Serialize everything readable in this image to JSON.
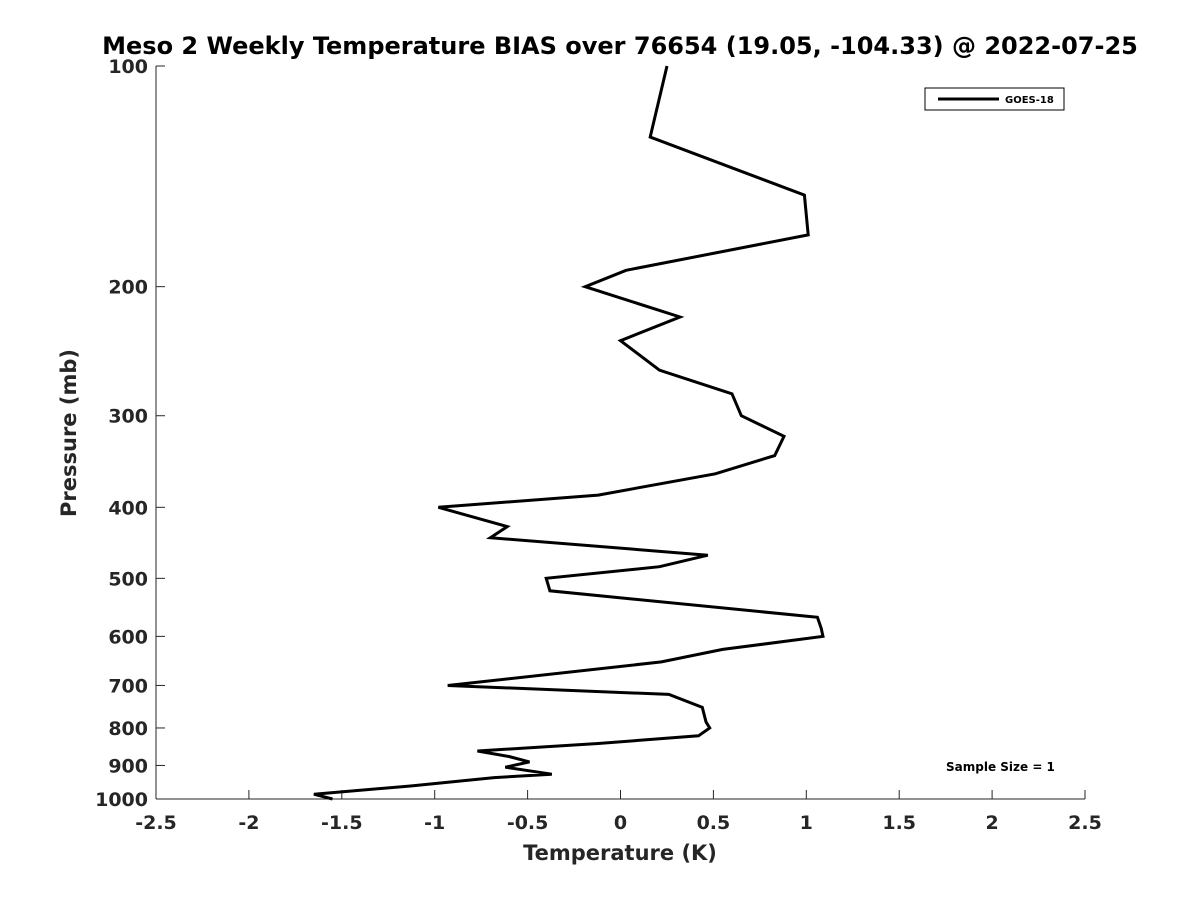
{
  "chart_data": {
    "type": "line",
    "title": "Meso 2 Weekly Temperature BIAS over 76654 (19.05, -104.33) @ 2022-07-25",
    "xlabel": "Temperature (K)",
    "ylabel": "Pressure (mb)",
    "xlim": [
      -2.5,
      2.5
    ],
    "ylim": [
      100,
      1000
    ],
    "y_scale": "log",
    "y_reversed": true,
    "x_ticks": [
      -2.5,
      -2,
      -1.5,
      -1,
      -0.5,
      0,
      0.5,
      1,
      1.5,
      2,
      2.5
    ],
    "x_tick_labels": [
      "-2.5",
      "-2",
      "-1.5",
      "-1",
      "-0.5",
      "0",
      "0.5",
      "1",
      "1.5",
      "2",
      "2.5"
    ],
    "y_ticks": [
      100,
      200,
      300,
      400,
      500,
      600,
      700,
      800,
      900,
      1000
    ],
    "y_tick_labels": [
      "100",
      "200",
      "300",
      "400",
      "500",
      "600",
      "700",
      "800",
      "900",
      "1000"
    ],
    "grid": false,
    "legend_position": "top-right",
    "series": [
      {
        "name": "GOES-18",
        "color": "#000000",
        "points": [
          {
            "x": 0.25,
            "y": 100
          },
          {
            "x": 0.16,
            "y": 125
          },
          {
            "x": 0.99,
            "y": 150
          },
          {
            "x": 1.01,
            "y": 170
          },
          {
            "x": 0.03,
            "y": 190
          },
          {
            "x": -0.19,
            "y": 200
          },
          {
            "x": 0.32,
            "y": 220
          },
          {
            "x": 0.0,
            "y": 237
          },
          {
            "x": 0.21,
            "y": 260
          },
          {
            "x": 0.6,
            "y": 280
          },
          {
            "x": 0.65,
            "y": 300
          },
          {
            "x": 0.88,
            "y": 320
          },
          {
            "x": 0.83,
            "y": 340
          },
          {
            "x": 0.51,
            "y": 360
          },
          {
            "x": -0.12,
            "y": 385
          },
          {
            "x": -0.98,
            "y": 400
          },
          {
            "x": -0.61,
            "y": 425
          },
          {
            "x": -0.7,
            "y": 440
          },
          {
            "x": 0.47,
            "y": 465
          },
          {
            "x": 0.21,
            "y": 482
          },
          {
            "x": -0.4,
            "y": 500
          },
          {
            "x": -0.38,
            "y": 520
          },
          {
            "x": 1.06,
            "y": 565
          },
          {
            "x": 1.08,
            "y": 585
          },
          {
            "x": 1.09,
            "y": 600
          },
          {
            "x": 0.55,
            "y": 625
          },
          {
            "x": 0.22,
            "y": 650
          },
          {
            "x": -0.93,
            "y": 700
          },
          {
            "x": 0.26,
            "y": 720
          },
          {
            "x": 0.44,
            "y": 750
          },
          {
            "x": 0.46,
            "y": 785
          },
          {
            "x": 0.48,
            "y": 800
          },
          {
            "x": 0.42,
            "y": 820
          },
          {
            "x": -0.12,
            "y": 840
          },
          {
            "x": -0.77,
            "y": 860
          },
          {
            "x": -0.6,
            "y": 875
          },
          {
            "x": -0.49,
            "y": 890
          },
          {
            "x": -0.62,
            "y": 905
          },
          {
            "x": -0.37,
            "y": 925
          },
          {
            "x": -0.68,
            "y": 935
          },
          {
            "x": -1.13,
            "y": 960
          },
          {
            "x": -1.65,
            "y": 985
          },
          {
            "x": -1.55,
            "y": 1000
          }
        ]
      }
    ],
    "annotations": [
      "Sample Size = 1"
    ]
  }
}
